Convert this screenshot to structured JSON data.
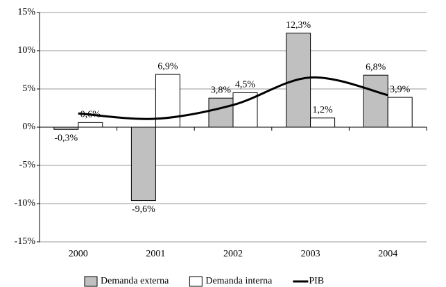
{
  "chart_data": {
    "type": "bar",
    "categories": [
      "2000",
      "2001",
      "2002",
      "2003",
      "2004"
    ],
    "series": [
      {
        "name": "Demanda externa",
        "color": "#c0c0c0",
        "values": [
          -0.3,
          -9.6,
          3.8,
          12.3,
          6.8
        ],
        "value_labels": [
          "-0,3%",
          "-9,6%",
          "3,8%",
          "12,3%",
          "6,8%"
        ]
      },
      {
        "name": "Demanda interna",
        "color": "#ffffff",
        "values": [
          0.6,
          6.9,
          4.5,
          1.2,
          3.9
        ],
        "value_labels": [
          "0,6%",
          "6,9%",
          "4,5%",
          "1,2%",
          "3,9%"
        ]
      },
      {
        "name": "PIB",
        "color": "#000000",
        "type": "line",
        "values": [
          1.8,
          1.1,
          2.9,
          6.5,
          4.2
        ]
      }
    ],
    "ylim": [
      -15,
      15
    ],
    "yticks": [
      {
        "value": -15,
        "label": "-15%"
      },
      {
        "value": -10,
        "label": "-10%"
      },
      {
        "value": -5,
        "label": "-5%"
      },
      {
        "value": 0,
        "label": "0%"
      },
      {
        "value": 5,
        "label": "5%"
      },
      {
        "value": 10,
        "label": "10%"
      },
      {
        "value": 15,
        "label": "15%"
      }
    ],
    "grid": true
  }
}
